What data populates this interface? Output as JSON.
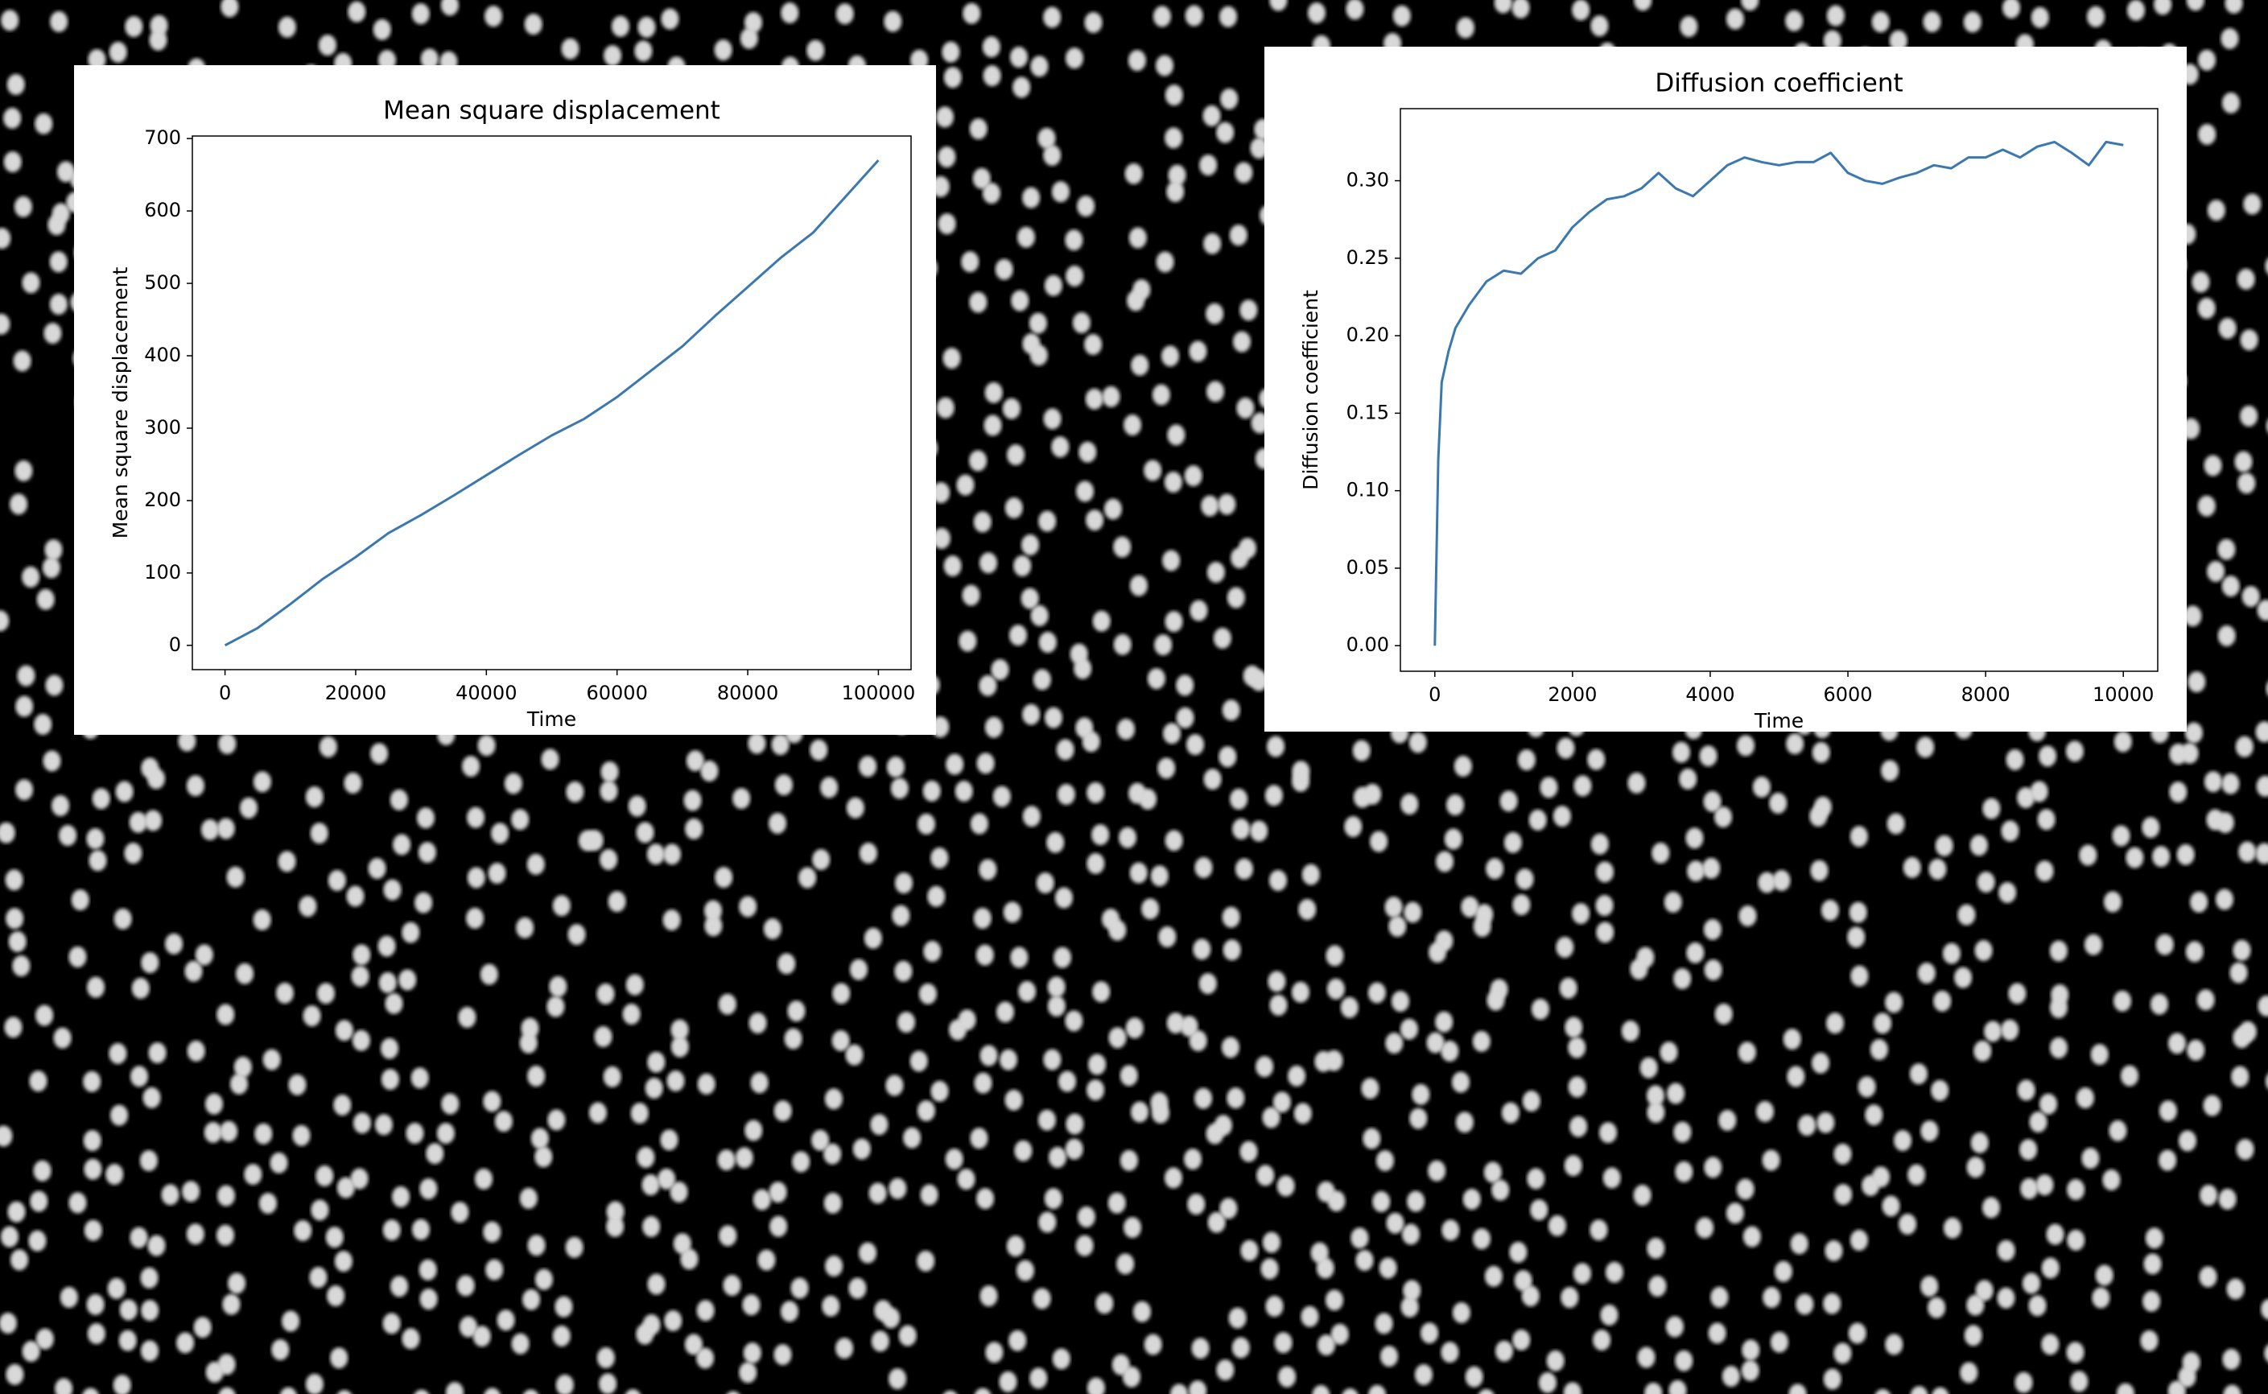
{
  "chart_data": [
    {
      "type": "line",
      "title": "Mean square displacement",
      "xlabel": "Time",
      "ylabel": "Mean square displacement",
      "color": "#3b78b0",
      "x": [
        0,
        5000,
        10000,
        15000,
        20000,
        25000,
        30000,
        35000,
        40000,
        45000,
        50000,
        55000,
        60000,
        65000,
        70000,
        75000,
        80000,
        85000,
        90000,
        95000,
        100000
      ],
      "values": [
        0,
        24,
        57,
        92,
        122,
        155,
        180,
        207,
        235,
        263,
        290,
        313,
        343,
        378,
        413,
        455,
        495,
        535,
        570,
        620,
        670
      ],
      "xlim": [
        -5000,
        105000
      ],
      "xticks": [
        0,
        20000,
        40000,
        60000,
        80000,
        100000
      ],
      "ylim": [
        -33.5,
        703.5
      ],
      "yticks": [
        0,
        100,
        200,
        300,
        400,
        500,
        600,
        700
      ]
    },
    {
      "type": "line",
      "title": "Diffusion coefficient",
      "xlabel": "Time",
      "ylabel": "Diffusion coefficient",
      "color": "#3b78b0",
      "x": [
        0,
        50,
        100,
        200,
        300,
        500,
        750,
        1000,
        1250,
        1500,
        1750,
        2000,
        2250,
        2500,
        2750,
        3000,
        3250,
        3500,
        3750,
        4000,
        4250,
        4500,
        4750,
        5000,
        5250,
        5500,
        5750,
        6000,
        6250,
        6500,
        6750,
        7000,
        7250,
        7500,
        7750,
        8000,
        8250,
        8500,
        8750,
        9000,
        9250,
        9500,
        9750,
        10000
      ],
      "values": [
        0,
        0.12,
        0.17,
        0.19,
        0.205,
        0.22,
        0.235,
        0.242,
        0.24,
        0.25,
        0.255,
        0.27,
        0.28,
        0.288,
        0.29,
        0.295,
        0.305,
        0.295,
        0.29,
        0.3,
        0.31,
        0.315,
        0.312,
        0.31,
        0.312,
        0.312,
        0.318,
        0.305,
        0.3,
        0.298,
        0.302,
        0.305,
        0.31,
        0.308,
        0.315,
        0.315,
        0.32,
        0.315,
        0.322,
        0.325,
        0.318,
        0.31,
        0.325,
        0.323
      ],
      "xlim": [
        -500,
        10500
      ],
      "xticks": [
        0,
        2000,
        4000,
        6000,
        8000,
        10000
      ],
      "ylim": [
        -0.0165,
        0.3465
      ],
      "yticks": [
        {
          "value": 0,
          "label": "0.00"
        },
        {
          "value": 0.05,
          "label": "0.05"
        },
        {
          "value": 0.1,
          "label": "0.10"
        },
        {
          "value": 0.15,
          "label": "0.15"
        },
        {
          "value": 0.2,
          "label": "0.20"
        },
        {
          "value": 0.25,
          "label": "0.25"
        },
        {
          "value": 0.3,
          "label": "0.30"
        }
      ]
    }
  ]
}
